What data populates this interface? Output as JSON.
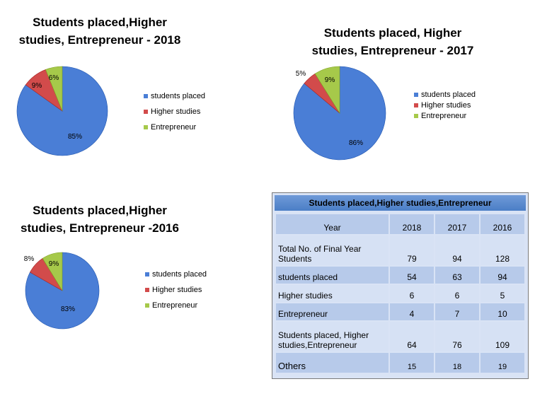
{
  "chart_data": [
    {
      "type": "pie",
      "title_lines": [
        "Students placed,Higher",
        "studies, Entrepreneur  - 2018"
      ],
      "categories": [
        "students placed",
        "Higher studies",
        "Entrepreneur"
      ],
      "values": [
        85,
        9,
        6
      ],
      "labels": [
        "85%",
        "9%",
        "6%"
      ],
      "colors": [
        "#4a7ed6",
        "#d24b4b",
        "#a6c94a"
      ],
      "legend_position": "right"
    },
    {
      "type": "pie",
      "title_lines": [
        "Students placed, Higher",
        "studies, Entrepreneur  - 2017"
      ],
      "categories": [
        "students placed",
        "Higher studies",
        "Entrepreneur"
      ],
      "values": [
        86,
        5,
        9
      ],
      "labels": [
        "86%",
        "5%",
        "9%"
      ],
      "colors": [
        "#4a7ed6",
        "#d24b4b",
        "#a6c94a"
      ],
      "legend_position": "right"
    },
    {
      "type": "pie",
      "title_lines": [
        "Students placed,Higher",
        "studies, Entrepreneur  -2016"
      ],
      "categories": [
        "students placed",
        "Higher studies",
        "Entrepreneur"
      ],
      "values": [
        83,
        8,
        9
      ],
      "labels": [
        "83%",
        "8%",
        "9%"
      ],
      "colors": [
        "#4a7ed6",
        "#d24b4b",
        "#a6c94a"
      ],
      "legend_position": "right"
    },
    {
      "type": "table",
      "title": "Students placed,Higher studies,Entrepreneur",
      "header": [
        "Year",
        "2018",
        "2017",
        "2016"
      ],
      "rows": [
        [
          "Total No. of Final Year Students",
          "79",
          "94",
          "128"
        ],
        [
          "students placed",
          "54",
          "63",
          "94"
        ],
        [
          "Higher studies",
          "6",
          "6",
          "5"
        ],
        [
          "Entrepreneur",
          "4",
          "7",
          "10"
        ],
        [
          "Students placed, Higher studies,Entrepreneur",
          "64",
          "76",
          "109"
        ],
        [
          "Others",
          "15",
          "18",
          "19"
        ]
      ]
    }
  ]
}
